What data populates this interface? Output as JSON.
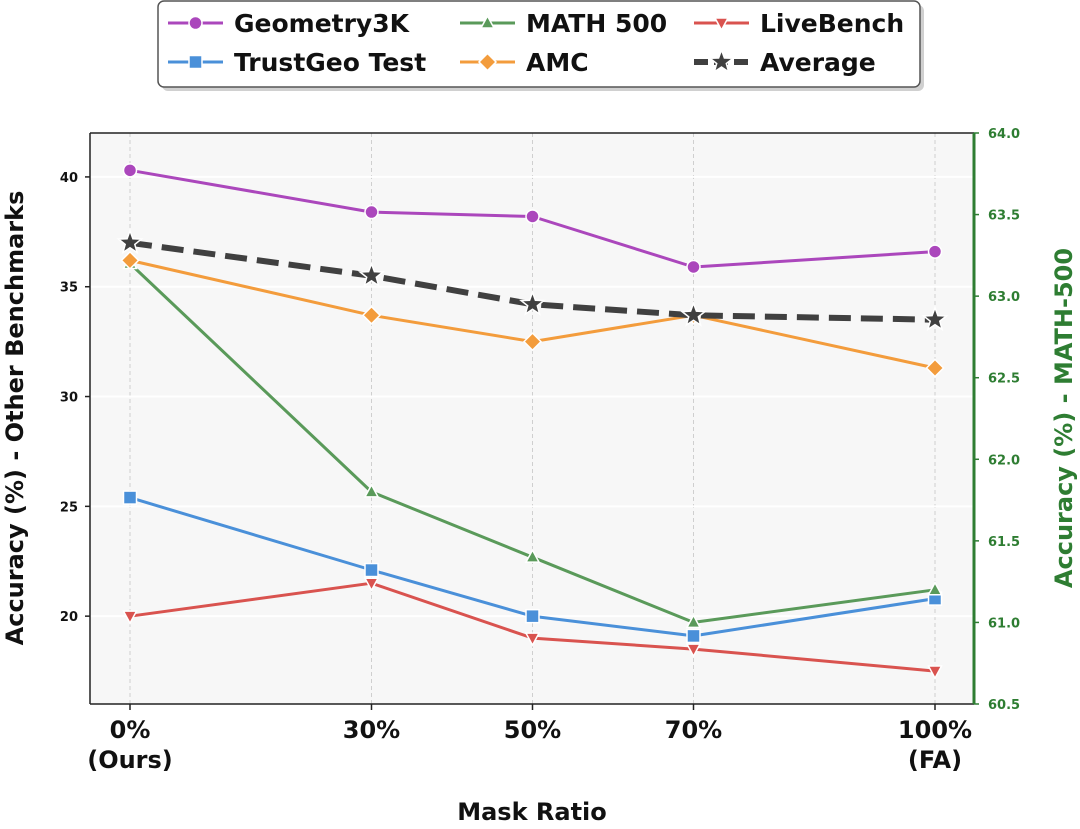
{
  "chart_data": {
    "type": "line",
    "title": "",
    "xlabel": "Mask Ratio",
    "ylabel_left": "Accuracy (%) - Other Benchmarks",
    "ylabel_right": "Accuracy (%) - MATH-500",
    "x_ratios": [
      0,
      30,
      50,
      70,
      100
    ],
    "xticks": [
      {
        "line1": "0%",
        "line2": "(Ours)"
      },
      {
        "line1": "30%",
        "line2": ""
      },
      {
        "line1": "50%",
        "line2": ""
      },
      {
        "line1": "70%",
        "line2": ""
      },
      {
        "line1": "100%",
        "line2": "(FA)"
      }
    ],
    "ylim_left": [
      16.0,
      42.0
    ],
    "yticks_left": [
      20,
      25,
      30,
      35,
      40
    ],
    "ylim_right": [
      60.5,
      64.0
    ],
    "yticks_right": [
      "60.5",
      "61.0",
      "61.5",
      "62.0",
      "62.5",
      "63.0",
      "63.5",
      "64.0"
    ],
    "grid": true,
    "legend_position": "top-center",
    "series": [
      {
        "name": "Geometry3K",
        "axis": "left",
        "color": "#ab47bc",
        "marker": "circle",
        "dashed": false,
        "values": [
          40.3,
          38.4,
          38.2,
          35.9,
          36.6
        ]
      },
      {
        "name": "TrustGeo Test",
        "axis": "left",
        "color": "#4a90d9",
        "marker": "square",
        "dashed": false,
        "values": [
          25.4,
          22.1,
          20.0,
          19.1,
          20.8
        ]
      },
      {
        "name": "MATH 500",
        "axis": "right",
        "color": "#5a9a5a",
        "marker": "triangle-up",
        "dashed": false,
        "values": [
          63.2,
          61.8,
          61.4,
          61.0,
          61.2
        ]
      },
      {
        "name": "AMC",
        "axis": "left",
        "color": "#f39c3c",
        "marker": "diamond",
        "dashed": false,
        "values": [
          36.2,
          33.7,
          32.5,
          33.7,
          31.3
        ]
      },
      {
        "name": "LiveBench",
        "axis": "left",
        "color": "#d9534f",
        "marker": "triangle-down",
        "dashed": false,
        "values": [
          20.0,
          21.5,
          19.0,
          18.5,
          17.5
        ]
      },
      {
        "name": "Average",
        "axis": "left",
        "color": "#404040",
        "marker": "star",
        "dashed": true,
        "values": [
          37.0,
          35.5,
          34.2,
          33.7,
          33.5
        ]
      }
    ]
  }
}
